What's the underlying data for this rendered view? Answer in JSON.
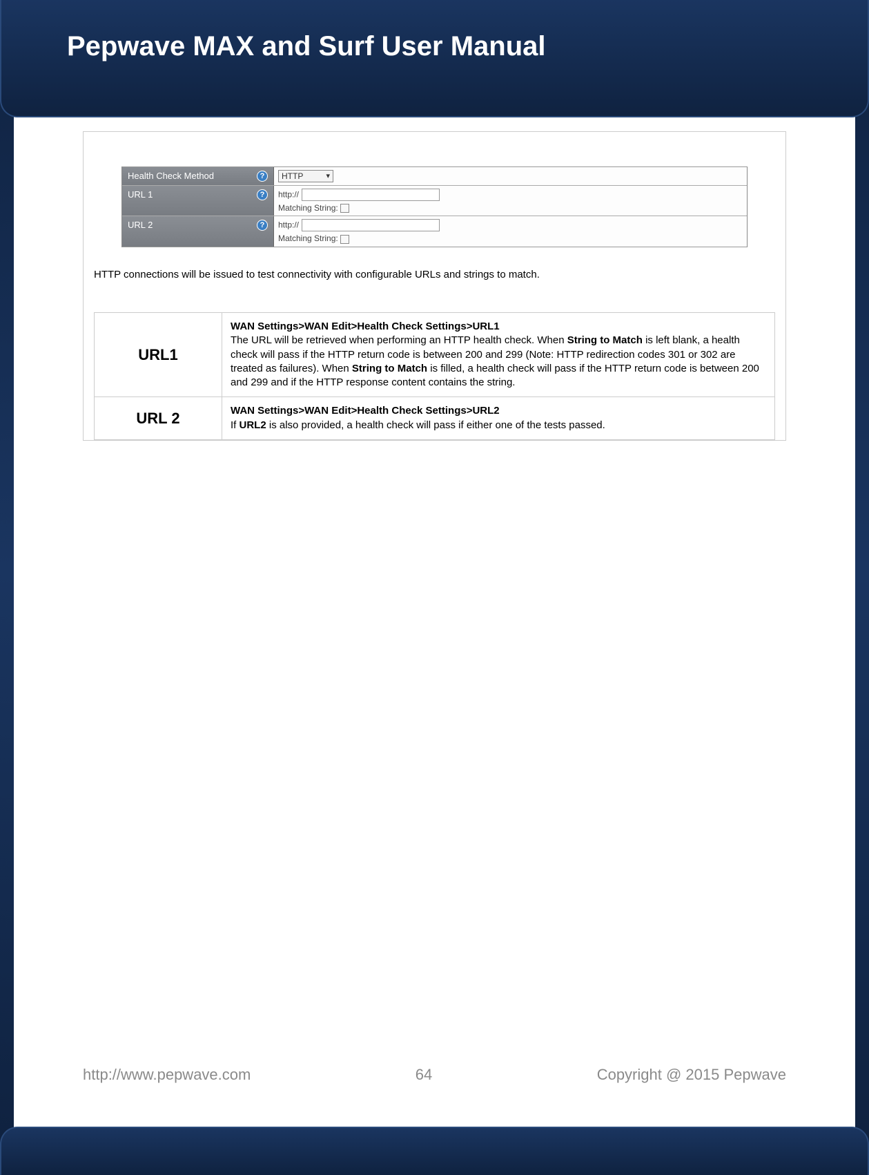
{
  "header": {
    "title": "Pepwave MAX and Surf User Manual"
  },
  "config_panel": {
    "rows": [
      {
        "label": "Health Check Method",
        "select_value": "HTTP"
      },
      {
        "label": "URL 1",
        "prefix": "http://",
        "matching_label": "Matching String:"
      },
      {
        "label": "URL 2",
        "prefix": "http://",
        "matching_label": "Matching String:"
      }
    ]
  },
  "description": "HTTP connections will be issued to test connectivity with configurable URLs and strings to match.",
  "definitions": [
    {
      "term": "URL1",
      "path": "WAN Settings>WAN Edit>Health Check Settings>URL1",
      "body_pre": "The URL will be retrieved when performing an HTTP health check. When ",
      "b1": "String to Match",
      "body_mid": " is left blank, a health check will pass if the HTTP return code is between 200 and 299 (Note: HTTP redirection codes 301 or 302 are treated as failures). When ",
      "b2": "String to Match",
      "body_post": " is filled, a health check will pass if the HTTP return code is between 200 and 299 and if the HTTP response content contains the string."
    },
    {
      "term": "URL 2",
      "path": "WAN Settings>WAN Edit>Health Check Settings>URL2",
      "body_pre": "If ",
      "b1": "URL2",
      "body_mid": " is also provided, a health check will pass if either one of the tests passed.",
      "b2": "",
      "body_post": ""
    }
  ],
  "footer": {
    "url": "http://www.pepwave.com",
    "page": "64",
    "copyright": "Copyright @ 2015 Pepwave"
  },
  "colors": {
    "header_bg_top": "#1a3560",
    "header_bg_bottom": "#0f2240",
    "panel_label_bg": "#8a8e94",
    "help_icon_bg": "#3a7fc4",
    "border": "#cccccc",
    "footer_text": "#8a8a8a"
  }
}
